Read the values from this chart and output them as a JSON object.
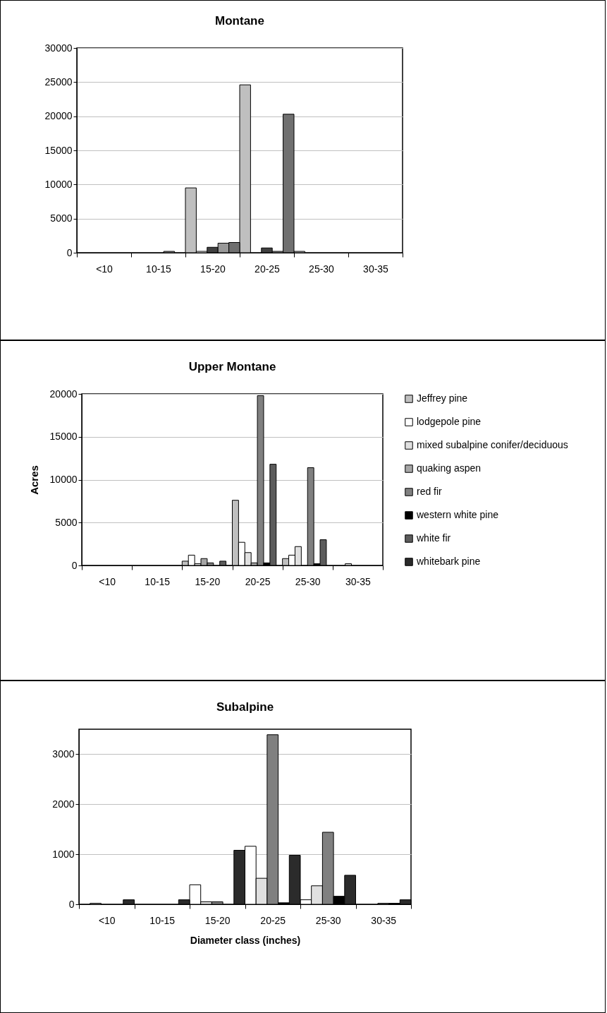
{
  "chart_data": [
    {
      "type": "bar",
      "title": "Montane",
      "categories": [
        "<10",
        "10-15",
        "15-20",
        "20-25",
        "25-30",
        "30-35"
      ],
      "series": [
        {
          "color": "#bfbfbf",
          "values": [
            null,
            null,
            9500,
            24600,
            200,
            null
          ]
        },
        {
          "color": "#ffffff",
          "values": [
            null,
            null,
            200,
            null,
            null,
            null
          ]
        },
        {
          "color": "#404040",
          "values": [
            null,
            null,
            800,
            700,
            null,
            null
          ]
        },
        {
          "color": "#999999",
          "values": [
            null,
            200,
            1400,
            200,
            null,
            null
          ]
        },
        {
          "color": "#707070",
          "values": [
            null,
            null,
            1500,
            20300,
            null,
            null
          ]
        }
      ],
      "ylim": [
        0,
        30000
      ],
      "yticks": [
        0,
        5000,
        10000,
        15000,
        20000,
        25000,
        30000
      ],
      "grid": "y"
    },
    {
      "type": "bar",
      "title": "Upper Montane",
      "ylabel": "Acres",
      "categories": [
        "<10",
        "10-15",
        "15-20",
        "20-25",
        "25-30",
        "30-35"
      ],
      "series": [
        {
          "name": "Jeffrey pine",
          "color": "#bfbfbf",
          "values": [
            null,
            null,
            500,
            7600,
            800,
            null
          ]
        },
        {
          "name": "lodgepole pine",
          "color": "#ffffff",
          "values": [
            null,
            null,
            1200,
            2700,
            1200,
            null
          ]
        },
        {
          "name": "mixed subalpine conifer/deciduous",
          "color": "#e0e0e0",
          "values": [
            null,
            null,
            200,
            1500,
            2200,
            200
          ]
        },
        {
          "name": "quaking aspen",
          "color": "#a6a6a6",
          "values": [
            null,
            null,
            800,
            300,
            null,
            null
          ]
        },
        {
          "name": "red fir",
          "color": "#808080",
          "values": [
            null,
            null,
            300,
            19800,
            11400,
            null
          ]
        },
        {
          "name": "western white pine",
          "color": "#000000",
          "values": [
            null,
            null,
            null,
            300,
            200,
            null
          ]
        },
        {
          "name": "white fir",
          "color": "#5c5c5c",
          "values": [
            null,
            null,
            500,
            11800,
            3000,
            null
          ]
        },
        {
          "name": "whitebark pine",
          "color": "#2b2b2b",
          "values": [
            null,
            null,
            null,
            null,
            null,
            null
          ]
        }
      ],
      "ylim": [
        0,
        20000
      ],
      "yticks": [
        0,
        5000,
        10000,
        15000,
        20000
      ],
      "grid": "y",
      "legend": "right"
    },
    {
      "type": "bar",
      "title": "Subalpine",
      "xlabel": "Diameter class (inches)",
      "categories": [
        "<10",
        "10-15",
        "15-20",
        "20-25",
        "25-30",
        "30-35"
      ],
      "series": [
        {
          "color": "#ffffff",
          "values": [
            null,
            null,
            390,
            1160,
            90,
            null
          ]
        },
        {
          "color": "#e0e0e0",
          "values": [
            20,
            null,
            50,
            520,
            370,
            null
          ]
        },
        {
          "color": "#808080",
          "values": [
            null,
            null,
            50,
            3390,
            1440,
            20
          ]
        },
        {
          "color": "#000000",
          "values": [
            null,
            null,
            null,
            30,
            160,
            20
          ]
        },
        {
          "color": "#2b2b2b",
          "values": [
            90,
            90,
            1080,
            980,
            580,
            90
          ]
        }
      ],
      "ylim": [
        0,
        3500
      ],
      "yticks": [
        0,
        1000,
        2000,
        3000
      ],
      "grid": "y"
    }
  ]
}
